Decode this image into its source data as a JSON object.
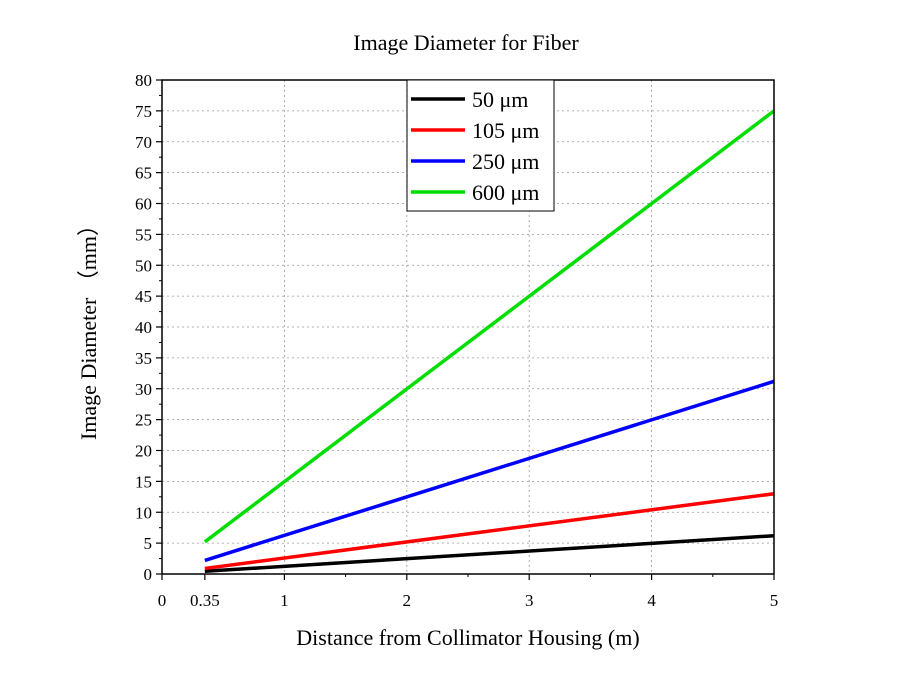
{
  "chart_data": {
    "type": "line",
    "title": "Image Diameter for Fiber",
    "xlabel": "Distance from Collimator Housing (m)",
    "ylabel": "Image Diameter （mm）",
    "xlim": [
      0,
      5
    ],
    "ylim": [
      0,
      80
    ],
    "xticks": [
      {
        "value": 0,
        "label": "0"
      },
      {
        "value": 0.35,
        "label": "0.35"
      },
      {
        "value": 1,
        "label": "1"
      },
      {
        "value": 2,
        "label": "2"
      },
      {
        "value": 3,
        "label": "3"
      },
      {
        "value": 4,
        "label": "4"
      },
      {
        "value": 5,
        "label": "5"
      }
    ],
    "yticks": [
      0,
      5,
      10,
      15,
      20,
      25,
      30,
      35,
      40,
      45,
      50,
      55,
      60,
      65,
      70,
      75,
      80
    ],
    "grid": true,
    "legend_position": "top-center",
    "series": [
      {
        "name": "50 μm",
        "color": "#000000",
        "x": [
          0.35,
          5
        ],
        "y": [
          0.44,
          6.2
        ]
      },
      {
        "name": "105 μm",
        "color": "#ff0000",
        "x": [
          0.35,
          5
        ],
        "y": [
          0.9,
          13.0
        ]
      },
      {
        "name": "250 μm",
        "color": "#0000ff",
        "x": [
          0.35,
          5
        ],
        "y": [
          2.2,
          31.2
        ]
      },
      {
        "name": "600 μm",
        "color": "#00dd00",
        "x": [
          0.35,
          5
        ],
        "y": [
          5.2,
          75.0
        ]
      }
    ]
  }
}
